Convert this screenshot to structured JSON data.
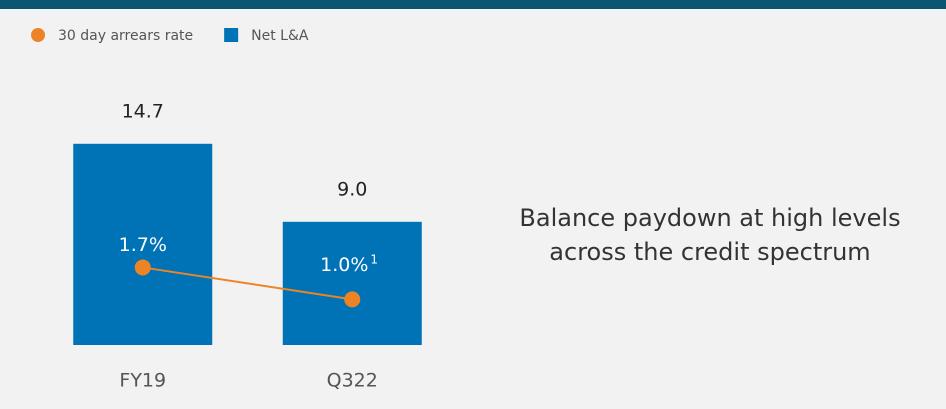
{
  "chart_data": {
    "type": "bar_line",
    "categories": [
      "FY19",
      "Q322"
    ],
    "series": [
      {
        "name": "Net L&A",
        "type": "bar",
        "color": "#0072b6",
        "values": [
          14.7,
          9.0
        ],
        "value_labels": [
          "14.7",
          "9.0"
        ]
      },
      {
        "name": "30 day arrears rate",
        "type": "line",
        "axis": "y2",
        "color": "#ec8426",
        "values": [
          1.7,
          1.0
        ],
        "value_labels": [
          "1.7%",
          "1.0%"
        ],
        "value_label_notes": [
          null,
          "1"
        ]
      }
    ],
    "legend_order": [
      1,
      0
    ],
    "ylim": [
      0,
      16
    ],
    "y2lim": [
      0,
      4.8
    ],
    "annotation": [
      "Balance paydown at high levels",
      "across the credit spectrum"
    ]
  }
}
